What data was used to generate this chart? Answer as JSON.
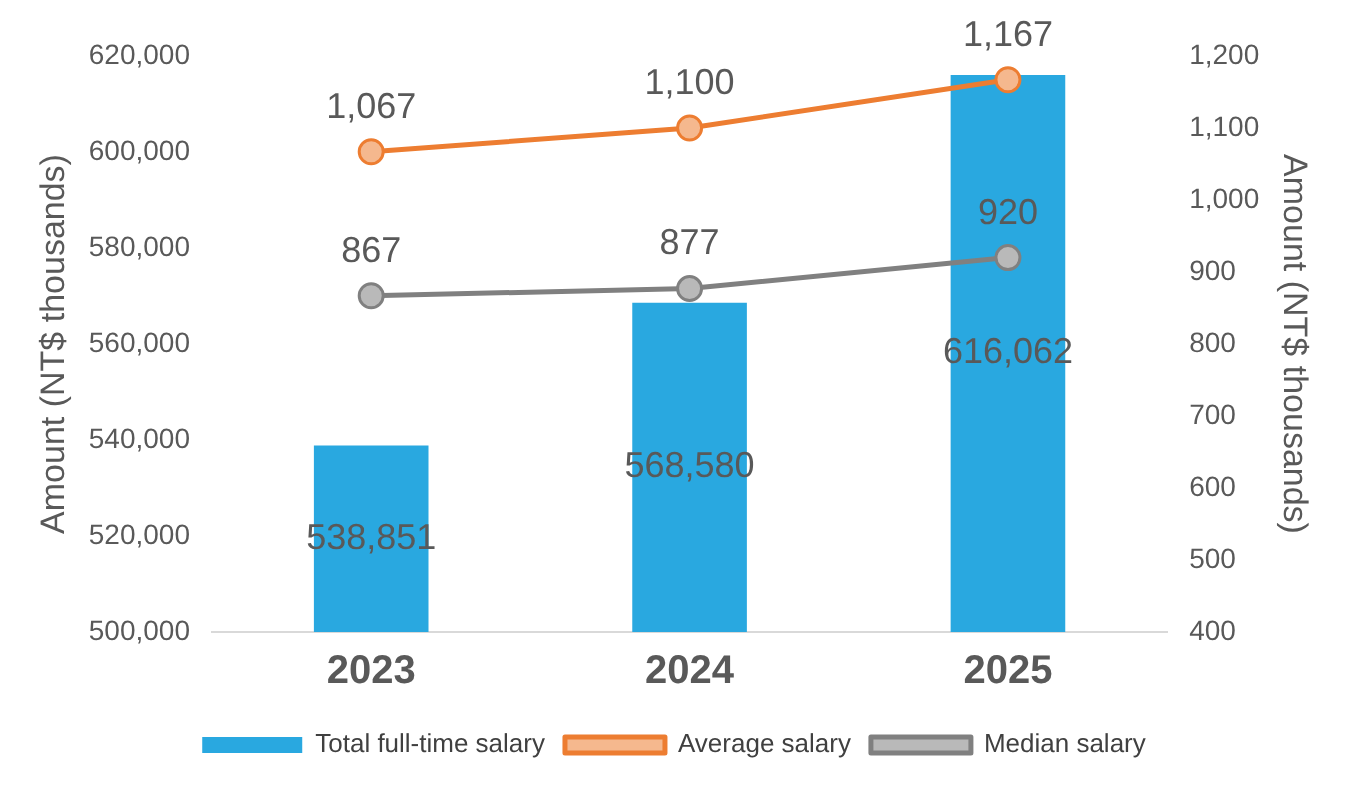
{
  "chart_data": {
    "type": "bar",
    "categories": [
      "2023",
      "2024",
      "2025"
    ],
    "ylabel": "Amount (NT$ thousands)",
    "y2label": "Amount (NT$ thousands)",
    "ylim": [
      500000,
      620000
    ],
    "yticks": [
      {
        "value": 500000,
        "label": "500,000"
      },
      {
        "value": 520000,
        "label": "520,000"
      },
      {
        "value": 540000,
        "label": "540,000"
      },
      {
        "value": 560000,
        "label": "560,000"
      },
      {
        "value": 580000,
        "label": "580,000"
      },
      {
        "value": 600000,
        "label": "600,000"
      },
      {
        "value": 620000,
        "label": "620,000"
      }
    ],
    "y2lim": [
      400,
      1200
    ],
    "y2ticks": [
      400,
      500,
      600,
      700,
      800,
      900,
      {
        "value": 1000,
        "label": "1,000"
      },
      {
        "value": 1100,
        "label": "1,100"
      },
      {
        "value": 1200,
        "label": "1,200"
      }
    ],
    "grid": false,
    "legend": "bottom",
    "marker": "circle",
    "series": [
      {
        "name": "Total full-time salary",
        "color": "#29a8e0",
        "values": [
          538851,
          568580,
          616062
        ],
        "value_labels": [
          "538,851",
          "568,580",
          "616,062"
        ]
      },
      {
        "name": "Average salary",
        "type": "line",
        "axis": "y2",
        "color": "#ed7d31",
        "values": [
          1067,
          1100,
          1167
        ],
        "value_labels": [
          "1,067",
          "1,100",
          "1,167"
        ]
      },
      {
        "name": "Median salary",
        "type": "line",
        "axis": "y2",
        "color": "#808080",
        "values": [
          867,
          877,
          920
        ],
        "value_labels": [
          "867",
          "877",
          "920"
        ]
      }
    ]
  }
}
